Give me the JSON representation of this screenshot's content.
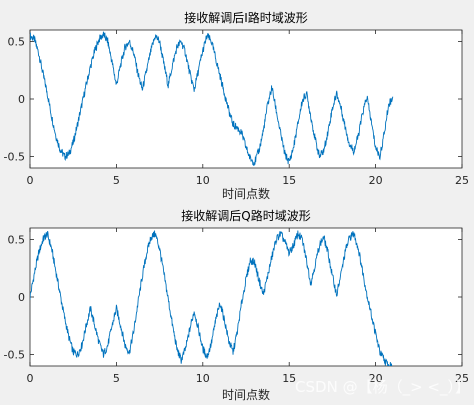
{
  "chart_data": [
    {
      "type": "line",
      "title": "接收解调后I路时域波形",
      "xlabel": "时间点数",
      "ylabel": "",
      "xlim": [
        0,
        25
      ],
      "ylim": [
        -0.6,
        0.6
      ],
      "xticks": [
        "0",
        "5",
        "10",
        "15",
        "20",
        "25"
      ],
      "yticks": [
        "0.5",
        "0",
        "-0.5"
      ],
      "grid": false,
      "series": [
        {
          "color": "#0072BD",
          "x": [
            0.0,
            0.25,
            0.5,
            0.75,
            1.0,
            1.25,
            1.5,
            1.75,
            2.0,
            2.25,
            2.5,
            2.75,
            3.0,
            3.25,
            3.5,
            3.75,
            4.0,
            4.25,
            4.5,
            4.75,
            5.0,
            5.25,
            5.5,
            5.75,
            6.0,
            6.25,
            6.5,
            6.75,
            7.0,
            7.25,
            7.5,
            7.75,
            8.0,
            8.25,
            8.5,
            8.75,
            9.0,
            9.25,
            9.5,
            9.75,
            10.0,
            10.25,
            10.5,
            10.75,
            11.0,
            11.25,
            11.5,
            11.75,
            12.0,
            12.25,
            12.5,
            12.75,
            13.0,
            13.25,
            13.5,
            13.75,
            14.0,
            14.25,
            14.5,
            14.75,
            15.0,
            15.25,
            15.5,
            15.75,
            16.0,
            16.25,
            16.5,
            16.75,
            17.0,
            17.25,
            17.5,
            17.75,
            18.0,
            18.25,
            18.5,
            18.75,
            19.0,
            19.25,
            19.5,
            19.75,
            20.0,
            20.25,
            20.5,
            20.75,
            21.0
          ],
          "y": [
            0.55,
            0.52,
            0.4,
            0.22,
            0.05,
            -0.15,
            -0.32,
            -0.44,
            -0.5,
            -0.48,
            -0.38,
            -0.22,
            -0.05,
            0.12,
            0.28,
            0.42,
            0.52,
            0.56,
            0.5,
            0.32,
            0.12,
            0.3,
            0.45,
            0.5,
            0.4,
            0.22,
            0.08,
            0.25,
            0.42,
            0.55,
            0.5,
            0.3,
            0.12,
            0.3,
            0.45,
            0.5,
            0.4,
            0.22,
            0.08,
            0.25,
            0.42,
            0.55,
            0.5,
            0.35,
            0.2,
            0.05,
            -0.1,
            -0.22,
            -0.25,
            -0.3,
            -0.42,
            -0.52,
            -0.55,
            -0.45,
            -0.28,
            -0.05,
            0.1,
            -0.1,
            -0.3,
            -0.48,
            -0.55,
            -0.42,
            -0.22,
            -0.02,
            0.05,
            -0.15,
            -0.35,
            -0.5,
            -0.45,
            -0.28,
            -0.08,
            0.05,
            -0.08,
            -0.25,
            -0.4,
            -0.45,
            -0.32,
            -0.12,
            0.02,
            -0.2,
            -0.42,
            -0.5,
            -0.3,
            -0.05,
            0.02
          ]
        }
      ]
    },
    {
      "type": "line",
      "title": "接收解调后Q路时域波形",
      "xlabel": "时间点数",
      "ylabel": "",
      "xlim": [
        0,
        25
      ],
      "ylim": [
        -0.6,
        0.6
      ],
      "xticks": [
        "0",
        "5",
        "10",
        "15",
        "20",
        "25"
      ],
      "yticks": [
        "0.5",
        "0",
        "-0.5"
      ],
      "grid": false,
      "series": [
        {
          "color": "#0072BD",
          "x": [
            0.0,
            0.25,
            0.5,
            0.75,
            1.0,
            1.25,
            1.5,
            1.75,
            2.0,
            2.25,
            2.5,
            2.75,
            3.0,
            3.25,
            3.5,
            3.75,
            4.0,
            4.25,
            4.5,
            4.75,
            5.0,
            5.25,
            5.5,
            5.75,
            6.0,
            6.25,
            6.5,
            6.75,
            7.0,
            7.25,
            7.5,
            7.75,
            8.0,
            8.25,
            8.5,
            8.75,
            9.0,
            9.25,
            9.5,
            9.75,
            10.0,
            10.25,
            10.5,
            10.75,
            11.0,
            11.25,
            11.5,
            11.75,
            12.0,
            12.25,
            12.5,
            12.75,
            13.0,
            13.25,
            13.5,
            13.75,
            14.0,
            14.25,
            14.5,
            14.75,
            15.0,
            15.25,
            15.5,
            15.75,
            16.0,
            16.25,
            16.5,
            16.75,
            17.0,
            17.25,
            17.5,
            17.75,
            18.0,
            18.25,
            18.5,
            18.75,
            19.0,
            19.25,
            19.5,
            19.75,
            20.0,
            20.25,
            20.5,
            20.75,
            21.0
          ],
          "y": [
            0.0,
            0.2,
            0.38,
            0.5,
            0.55,
            0.42,
            0.22,
            0.02,
            -0.18,
            -0.35,
            -0.48,
            -0.5,
            -0.42,
            -0.25,
            -0.1,
            -0.25,
            -0.4,
            -0.5,
            -0.42,
            -0.25,
            -0.1,
            -0.25,
            -0.42,
            -0.48,
            -0.3,
            -0.05,
            0.18,
            0.38,
            0.52,
            0.55,
            0.42,
            0.2,
            -0.02,
            -0.25,
            -0.45,
            -0.55,
            -0.45,
            -0.28,
            -0.12,
            -0.28,
            -0.45,
            -0.52,
            -0.4,
            -0.2,
            -0.05,
            -0.2,
            -0.38,
            -0.48,
            -0.3,
            -0.05,
            0.15,
            0.32,
            0.3,
            0.15,
            0.02,
            0.18,
            0.35,
            0.5,
            0.55,
            0.48,
            0.38,
            0.45,
            0.55,
            0.5,
            0.32,
            0.12,
            0.28,
            0.45,
            0.52,
            0.38,
            0.18,
            0.02,
            0.2,
            0.4,
            0.52,
            0.55,
            0.42,
            0.22,
            0.02,
            -0.15,
            -0.32,
            -0.48,
            -0.55,
            -0.6,
            -0.6
          ]
        }
      ]
    }
  ],
  "watermark": "CSDN @【杨（_> <_）】"
}
